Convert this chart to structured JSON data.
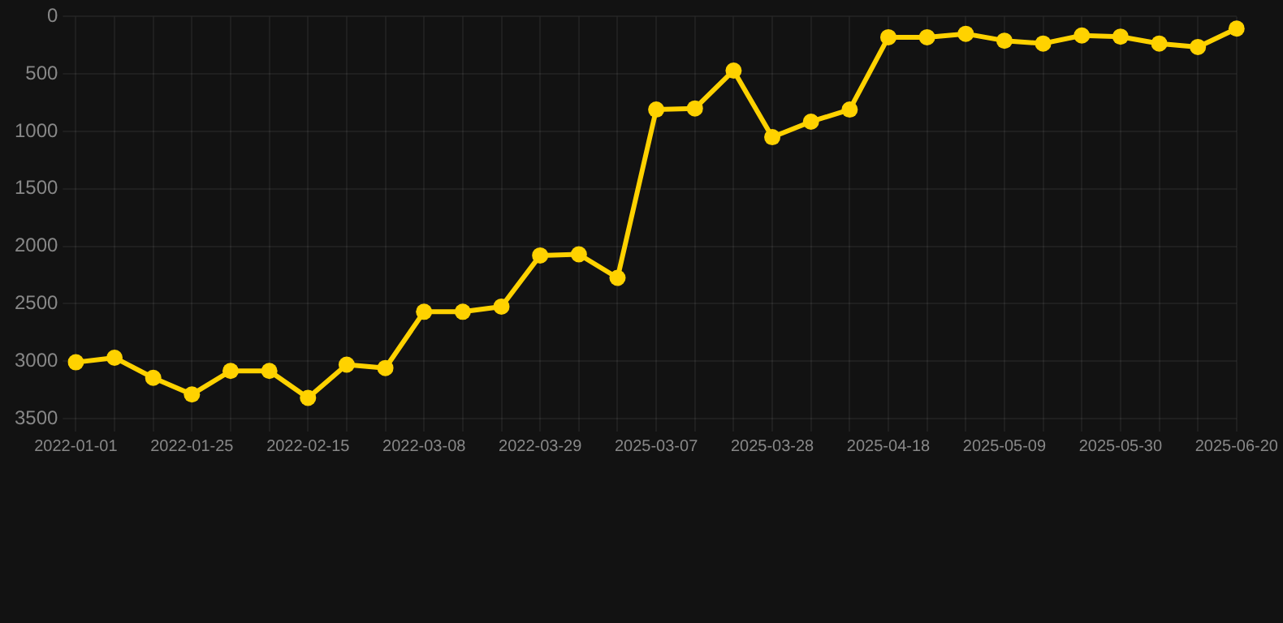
{
  "chart_data": {
    "type": "line",
    "categories": [
      "2022-01-01",
      null,
      null,
      "2022-01-25",
      null,
      null,
      "2022-02-15",
      null,
      null,
      "2022-03-08",
      null,
      null,
      "2022-03-29",
      null,
      null,
      "2025-03-07",
      null,
      null,
      "2025-03-28",
      null,
      null,
      "2025-04-18",
      null,
      null,
      "2025-05-09",
      null,
      null,
      "2025-05-30",
      null,
      null,
      "2025-06-20"
    ],
    "series": [
      {
        "color": "#ffd200",
        "values": [
          3010,
          2970,
          3145,
          3290,
          3085,
          3085,
          3320,
          3030,
          3060,
          2570,
          2570,
          2525,
          2080,
          2070,
          2275,
          810,
          800,
          470,
          1050,
          915,
          810,
          180,
          180,
          150,
          210,
          235,
          165,
          175,
          235,
          265,
          105
        ]
      }
    ],
    "ylim": [
      3500,
      0
    ],
    "yticks": [
      0,
      500,
      1000,
      1500,
      2000,
      2500,
      3000,
      3500
    ],
    "grid": true,
    "marker": "circle",
    "line_style": "solid"
  }
}
